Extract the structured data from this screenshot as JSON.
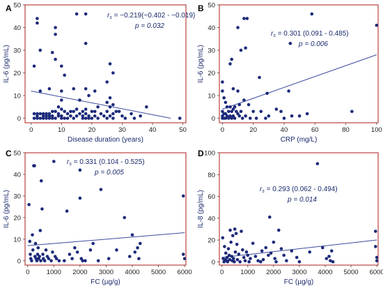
{
  "chart_data": [
    {
      "type": "scatter",
      "panel": "A",
      "xlabel": "Disease duration (years)",
      "ylabel": "IL-6 (pg/mL)",
      "xlim": [
        -2,
        51
      ],
      "ylim": [
        -2,
        50
      ],
      "xticks": [
        "0",
        "10",
        "20",
        "30",
        "40",
        "50"
      ],
      "yticks": [
        "0",
        "10",
        "20",
        "30",
        "40",
        "50"
      ],
      "xtick_values": [
        0,
        10,
        20,
        30,
        40,
        50
      ],
      "ytick_values": [
        0,
        10,
        20,
        30,
        40,
        50
      ],
      "annotation": {
        "rs_symbol": "r",
        "rs_sub": "s",
        "rs_text": " = −0.219(−0.402 - −0.019)",
        "p_text": "p = 0.032"
      },
      "fit": {
        "x": [
          0,
          46
        ],
        "y": [
          12,
          0
        ]
      },
      "points": [
        [
          1,
          23
        ],
        [
          1,
          2
        ],
        [
          1,
          0
        ],
        [
          2,
          44
        ],
        [
          2,
          42
        ],
        [
          2,
          2
        ],
        [
          2,
          1
        ],
        [
          2,
          0
        ],
        [
          3,
          12
        ],
        [
          3,
          30
        ],
        [
          3,
          2
        ],
        [
          3,
          0
        ],
        [
          4,
          2
        ],
        [
          4,
          1
        ],
        [
          4,
          0
        ],
        [
          5,
          2
        ],
        [
          5,
          1
        ],
        [
          5,
          0
        ],
        [
          6,
          13
        ],
        [
          6,
          2
        ],
        [
          6,
          1
        ],
        [
          6,
          0
        ],
        [
          7,
          29
        ],
        [
          7,
          3
        ],
        [
          7,
          1
        ],
        [
          7,
          0
        ],
        [
          8,
          40
        ],
        [
          8,
          37
        ],
        [
          8,
          26
        ],
        [
          8,
          3
        ],
        [
          8,
          0
        ],
        [
          9,
          5
        ],
        [
          9,
          2
        ],
        [
          9,
          1
        ],
        [
          10,
          23
        ],
        [
          10,
          12
        ],
        [
          10,
          8
        ],
        [
          10,
          4
        ],
        [
          10,
          1
        ],
        [
          10,
          0
        ],
        [
          11,
          19
        ],
        [
          11,
          3
        ],
        [
          11,
          0
        ],
        [
          12,
          2
        ],
        [
          12,
          0
        ],
        [
          13,
          3
        ],
        [
          13,
          1
        ],
        [
          14,
          13
        ],
        [
          14,
          3
        ],
        [
          14,
          0
        ],
        [
          15,
          46
        ],
        [
          15,
          4
        ],
        [
          15,
          1
        ],
        [
          16,
          8
        ],
        [
          16,
          2
        ],
        [
          17,
          3
        ],
        [
          17,
          1
        ],
        [
          17,
          0
        ],
        [
          18,
          46
        ],
        [
          18,
          33
        ],
        [
          18,
          13
        ],
        [
          18,
          4
        ],
        [
          18,
          2
        ],
        [
          18,
          0
        ],
        [
          19,
          10
        ],
        [
          19,
          1
        ],
        [
          19,
          0
        ],
        [
          20,
          3
        ],
        [
          20,
          0
        ],
        [
          21,
          12
        ],
        [
          21,
          3
        ],
        [
          21,
          1
        ],
        [
          22,
          5
        ],
        [
          22,
          0
        ],
        [
          23,
          2
        ],
        [
          24,
          1
        ],
        [
          25,
          16
        ],
        [
          25,
          7
        ],
        [
          25,
          3
        ],
        [
          25,
          0
        ],
        [
          26,
          24
        ],
        [
          26,
          9
        ],
        [
          26,
          5
        ],
        [
          26,
          1
        ],
        [
          27,
          20
        ],
        [
          27,
          6
        ],
        [
          27,
          2
        ],
        [
          27,
          0
        ],
        [
          28,
          3
        ],
        [
          29,
          3
        ],
        [
          30,
          1
        ],
        [
          31,
          0
        ],
        [
          33,
          2
        ],
        [
          34,
          0
        ],
        [
          36,
          1
        ],
        [
          38,
          5
        ],
        [
          49,
          0
        ]
      ]
    },
    {
      "type": "scatter",
      "panel": "B",
      "xlabel": "CRP (mg/L)",
      "ylabel": "IL-6 (pg/mL)",
      "xlim": [
        -2,
        101
      ],
      "ylim": [
        -2,
        50
      ],
      "xticks": [
        "0",
        "20",
        "40",
        "60",
        "80",
        "100"
      ],
      "yticks": [
        "0",
        "10",
        "20",
        "30",
        "40",
        "50"
      ],
      "xtick_values": [
        0,
        20,
        40,
        60,
        80,
        100
      ],
      "ytick_values": [
        0,
        10,
        20,
        30,
        40,
        50
      ],
      "annotation": {
        "rs_symbol": "r",
        "rs_sub": "s",
        "rs_text": " = 0.301 (0.091 - 0.485)",
        "p_text": "p = 0.006"
      },
      "fit": {
        "x": [
          0,
          100
        ],
        "y": [
          4,
          28
        ]
      },
      "points": [
        [
          0,
          16
        ],
        [
          0,
          12
        ],
        [
          0,
          3
        ],
        [
          0,
          1
        ],
        [
          0,
          0
        ],
        [
          1,
          9
        ],
        [
          1,
          2
        ],
        [
          1,
          0
        ],
        [
          2,
          7
        ],
        [
          2,
          2
        ],
        [
          2,
          0
        ],
        [
          3,
          5
        ],
        [
          3,
          1
        ],
        [
          4,
          3
        ],
        [
          4,
          0
        ],
        [
          5,
          24
        ],
        [
          5,
          5
        ],
        [
          5,
          1
        ],
        [
          6,
          26
        ],
        [
          6,
          3
        ],
        [
          6,
          0
        ],
        [
          7,
          13
        ],
        [
          7,
          4
        ],
        [
          7,
          1
        ],
        [
          8,
          5
        ],
        [
          8,
          0
        ],
        [
          9,
          3
        ],
        [
          10,
          40
        ],
        [
          10,
          12
        ],
        [
          10,
          2
        ],
        [
          11,
          6
        ],
        [
          11,
          1
        ],
        [
          12,
          30
        ],
        [
          12,
          3
        ],
        [
          13,
          0
        ],
        [
          14,
          44
        ],
        [
          14,
          8
        ],
        [
          15,
          31
        ],
        [
          15,
          1
        ],
        [
          16,
          44
        ],
        [
          17,
          6
        ],
        [
          18,
          0
        ],
        [
          20,
          3
        ],
        [
          22,
          0
        ],
        [
          24,
          18
        ],
        [
          25,
          3
        ],
        [
          28,
          0
        ],
        [
          29,
          11
        ],
        [
          30,
          1
        ],
        [
          35,
          4
        ],
        [
          38,
          3
        ],
        [
          40,
          0
        ],
        [
          43,
          12
        ],
        [
          44,
          33
        ],
        [
          45,
          1
        ],
        [
          50,
          1
        ],
        [
          55,
          2
        ],
        [
          58,
          46
        ],
        [
          84,
          3
        ],
        [
          100,
          41
        ]
      ]
    },
    {
      "type": "scatter",
      "panel": "C",
      "xlabel": "FC (µg/g)",
      "ylabel": "IL-6 (pg/mL)",
      "xlim": [
        -100,
        6050
      ],
      "ylim": [
        -2,
        50
      ],
      "xticks": [
        "0",
        "1000",
        "2000",
        "3000",
        "4000",
        "5000",
        "6000"
      ],
      "yticks": [
        "0",
        "10",
        "20",
        "30",
        "40",
        "50"
      ],
      "xtick_values": [
        0,
        1000,
        2000,
        3000,
        4000,
        5000,
        6000
      ],
      "ytick_values": [
        0,
        10,
        20,
        30,
        40,
        50
      ],
      "annotation": {
        "rs_symbol": "r",
        "rs_sub": "s",
        "rs_text": " = 0.331 (0.104 - 0.525)",
        "p_text": "p = 0.005"
      },
      "fit": {
        "x": [
          0,
          6000
        ],
        "y": [
          7,
          13
        ]
      },
      "points": [
        [
          50,
          26
        ],
        [
          80,
          9
        ],
        [
          100,
          3
        ],
        [
          120,
          1
        ],
        [
          150,
          0
        ],
        [
          180,
          12
        ],
        [
          200,
          5
        ],
        [
          230,
          44
        ],
        [
          260,
          44
        ],
        [
          280,
          2
        ],
        [
          300,
          8
        ],
        [
          320,
          1
        ],
        [
          350,
          0
        ],
        [
          380,
          3
        ],
        [
          400,
          6
        ],
        [
          420,
          1
        ],
        [
          450,
          2
        ],
        [
          480,
          14
        ],
        [
          500,
          0
        ],
        [
          520,
          37
        ],
        [
          550,
          24
        ],
        [
          580,
          3
        ],
        [
          600,
          1
        ],
        [
          650,
          0
        ],
        [
          700,
          5
        ],
        [
          750,
          2
        ],
        [
          800,
          1
        ],
        [
          900,
          0
        ],
        [
          950,
          4
        ],
        [
          1000,
          46
        ],
        [
          1050,
          2
        ],
        [
          1100,
          1
        ],
        [
          1200,
          0
        ],
        [
          1400,
          0
        ],
        [
          1500,
          23
        ],
        [
          1600,
          3
        ],
        [
          1700,
          1
        ],
        [
          1800,
          6
        ],
        [
          1900,
          4
        ],
        [
          2000,
          42
        ],
        [
          2000,
          29
        ],
        [
          2050,
          1
        ],
        [
          2100,
          0
        ],
        [
          2200,
          0
        ],
        [
          2400,
          5
        ],
        [
          2500,
          8
        ],
        [
          2700,
          0
        ],
        [
          2800,
          33
        ],
        [
          3100,
          1
        ],
        [
          3400,
          5
        ],
        [
          3700,
          20
        ],
        [
          3900,
          2
        ],
        [
          4000,
          12
        ],
        [
          4100,
          4
        ],
        [
          4200,
          6
        ],
        [
          4250,
          1
        ],
        [
          4300,
          8
        ],
        [
          5950,
          30
        ],
        [
          5950,
          3
        ],
        [
          6000,
          1
        ]
      ]
    },
    {
      "type": "scatter",
      "panel": "D",
      "xlabel": "FC (µg/g)",
      "ylabel": "IL-8 (pg/mL)",
      "xlim": [
        -100,
        6050
      ],
      "ylim": [
        -3,
        100
      ],
      "xticks": [
        "0",
        "1000",
        "2000",
        "3000",
        "4000",
        "5000",
        "6000"
      ],
      "yticks": [
        "0",
        "20",
        "40",
        "60",
        "80",
        "100"
      ],
      "xtick_values": [
        0,
        1000,
        2000,
        3000,
        4000,
        5000,
        6000
      ],
      "ytick_values": [
        0,
        20,
        40,
        60,
        80,
        100
      ],
      "annotation": {
        "rs_symbol": "r",
        "rs_sub": "s",
        "rs_text": " = 0.293 (0.062 - 0.494)",
        "p_text": "p = 0.014"
      },
      "fit": {
        "x": [
          0,
          6000
        ],
        "y": [
          4,
          20
        ]
      },
      "points": [
        [
          30,
          22
        ],
        [
          50,
          3
        ],
        [
          80,
          0
        ],
        [
          100,
          14
        ],
        [
          120,
          2
        ],
        [
          150,
          8
        ],
        [
          180,
          1
        ],
        [
          200,
          4
        ],
        [
          220,
          0
        ],
        [
          250,
          12
        ],
        [
          280,
          6
        ],
        [
          300,
          2
        ],
        [
          320,
          29
        ],
        [
          350,
          18
        ],
        [
          380,
          5
        ],
        [
          400,
          1
        ],
        [
          420,
          24
        ],
        [
          450,
          3
        ],
        [
          480,
          0
        ],
        [
          500,
          30
        ],
        [
          520,
          9
        ],
        [
          550,
          26
        ],
        [
          580,
          16
        ],
        [
          600,
          2
        ],
        [
          650,
          7
        ],
        [
          700,
          0
        ],
        [
          750,
          28
        ],
        [
          800,
          11
        ],
        [
          850,
          4
        ],
        [
          900,
          1
        ],
        [
          950,
          9
        ],
        [
          1000,
          6
        ],
        [
          1050,
          0
        ],
        [
          1100,
          3
        ],
        [
          1200,
          17
        ],
        [
          1300,
          5
        ],
        [
          1400,
          1
        ],
        [
          1500,
          0
        ],
        [
          1550,
          10
        ],
        [
          1600,
          2
        ],
        [
          1700,
          13
        ],
        [
          1800,
          6
        ],
        [
          1850,
          41
        ],
        [
          1900,
          8
        ],
        [
          2000,
          18
        ],
        [
          2050,
          3
        ],
        [
          2100,
          0
        ],
        [
          2200,
          29
        ],
        [
          2300,
          12
        ],
        [
          2400,
          6
        ],
        [
          2500,
          1
        ],
        [
          2700,
          10
        ],
        [
          2900,
          4
        ],
        [
          3000,
          0
        ],
        [
          3400,
          9
        ],
        [
          3700,
          90
        ],
        [
          3900,
          13
        ],
        [
          4050,
          3
        ],
        [
          4150,
          5
        ],
        [
          4200,
          1
        ],
        [
          4250,
          10
        ],
        [
          4300,
          0
        ],
        [
          5950,
          28
        ],
        [
          5950,
          14
        ],
        [
          6000,
          4
        ],
        [
          6000,
          1
        ]
      ]
    }
  ],
  "colors": {
    "frame": "#c0504d",
    "point": "#1c2a7a",
    "fit_line": "#3a4aa0",
    "text": "#1a2a6c",
    "tick_text": "#202020"
  }
}
